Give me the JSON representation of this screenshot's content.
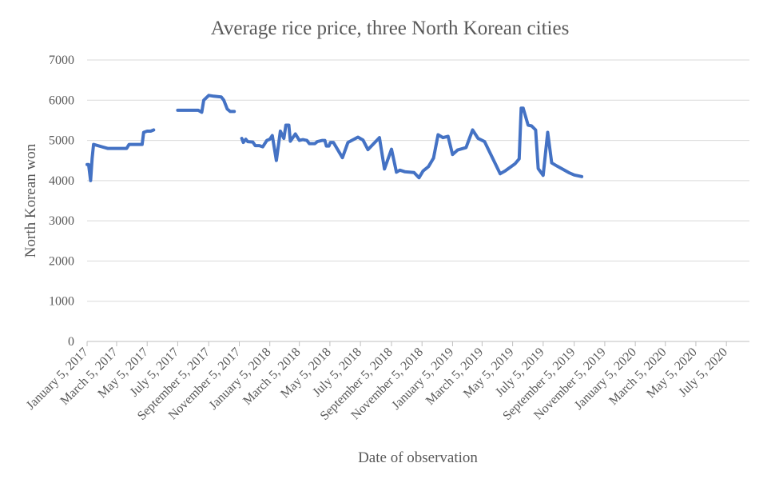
{
  "chart_data": {
    "type": "line",
    "title": "Average rice price, three North Korean cities",
    "xlabel": "Date of observation",
    "ylabel": "North Korean won",
    "ylim": [
      0,
      7000
    ],
    "yticks": [
      0,
      1000,
      2000,
      3000,
      4000,
      5000,
      6000,
      7000
    ],
    "xlim": [
      "2017-01-05",
      "2020-08-20"
    ],
    "xticks": [
      {
        "date": "2017-01-05",
        "label": "January 5, 2017"
      },
      {
        "date": "2017-03-05",
        "label": "March 5, 2017"
      },
      {
        "date": "2017-05-05",
        "label": "May 5, 2017"
      },
      {
        "date": "2017-07-05",
        "label": "July 5, 2017"
      },
      {
        "date": "2017-09-05",
        "label": "September 5, 2017"
      },
      {
        "date": "2017-11-05",
        "label": "November 5, 2017"
      },
      {
        "date": "2018-01-05",
        "label": "January 5, 2018"
      },
      {
        "date": "2018-03-05",
        "label": "March 5, 2018"
      },
      {
        "date": "2018-05-05",
        "label": "May 5, 2018"
      },
      {
        "date": "2018-07-05",
        "label": "July 5, 2018"
      },
      {
        "date": "2018-09-05",
        "label": "September 5, 2018"
      },
      {
        "date": "2018-11-05",
        "label": "November 5, 2018"
      },
      {
        "date": "2019-01-05",
        "label": "January 5, 2019"
      },
      {
        "date": "2019-03-05",
        "label": "March 5, 2019"
      },
      {
        "date": "2019-05-05",
        "label": "May 5, 2019"
      },
      {
        "date": "2019-07-05",
        "label": "July 5, 2019"
      },
      {
        "date": "2019-09-05",
        "label": "September 5, 2019"
      },
      {
        "date": "2019-11-05",
        "label": "November 5, 2019"
      },
      {
        "date": "2020-01-05",
        "label": "January 5, 2020"
      },
      {
        "date": "2020-03-05",
        "label": "March 5, 2020"
      },
      {
        "date": "2020-05-05",
        "label": "May 5, 2020"
      },
      {
        "date": "2020-07-05",
        "label": "July 5, 2020"
      }
    ],
    "grid": true,
    "series_color": "#4472c4",
    "series": [
      {
        "segments": [
          [
            {
              "x": "2017-01-05",
              "y": 4400
            },
            {
              "x": "2017-01-08",
              "y": 4400
            },
            {
              "x": "2017-01-12",
              "y": 4000
            },
            {
              "x": "2017-01-15",
              "y": 4550
            },
            {
              "x": "2017-01-18",
              "y": 4900
            },
            {
              "x": "2017-02-15",
              "y": 4800
            },
            {
              "x": "2017-03-25",
              "y": 4800
            },
            {
              "x": "2017-03-30",
              "y": 4900
            },
            {
              "x": "2017-04-25",
              "y": 4900
            },
            {
              "x": "2017-04-28",
              "y": 5200
            },
            {
              "x": "2017-05-05",
              "y": 5230
            },
            {
              "x": "2017-05-12",
              "y": 5230
            },
            {
              "x": "2017-05-18",
              "y": 5260
            }
          ],
          [
            {
              "x": "2017-07-05",
              "y": 5750
            },
            {
              "x": "2017-08-01",
              "y": 5750
            },
            {
              "x": "2017-08-15",
              "y": 5750
            },
            {
              "x": "2017-08-22",
              "y": 5700
            },
            {
              "x": "2017-08-26",
              "y": 6000
            },
            {
              "x": "2017-09-05",
              "y": 6120
            },
            {
              "x": "2017-09-15",
              "y": 6100
            },
            {
              "x": "2017-09-30",
              "y": 6080
            },
            {
              "x": "2017-10-05",
              "y": 6000
            },
            {
              "x": "2017-10-12",
              "y": 5780
            },
            {
              "x": "2017-10-18",
              "y": 5720
            },
            {
              "x": "2017-10-26",
              "y": 5720
            }
          ],
          [
            {
              "x": "2017-11-10",
              "y": 5050
            },
            {
              "x": "2017-11-13",
              "y": 4950
            },
            {
              "x": "2017-11-18",
              "y": 5030
            },
            {
              "x": "2017-11-22",
              "y": 4970
            },
            {
              "x": "2017-12-02",
              "y": 4960
            },
            {
              "x": "2017-12-07",
              "y": 4870
            },
            {
              "x": "2017-12-15",
              "y": 4870
            },
            {
              "x": "2017-12-22",
              "y": 4840
            },
            {
              "x": "2017-12-30",
              "y": 5000
            },
            {
              "x": "2018-01-05",
              "y": 5030
            },
            {
              "x": "2018-01-10",
              "y": 5120
            },
            {
              "x": "2018-01-18",
              "y": 4500
            },
            {
              "x": "2018-01-26",
              "y": 5230
            },
            {
              "x": "2018-02-02",
              "y": 5050
            },
            {
              "x": "2018-02-06",
              "y": 5380
            },
            {
              "x": "2018-02-12",
              "y": 5380
            },
            {
              "x": "2018-02-15",
              "y": 4980
            },
            {
              "x": "2018-02-25",
              "y": 5160
            },
            {
              "x": "2018-03-05",
              "y": 5000
            },
            {
              "x": "2018-03-12",
              "y": 5020
            },
            {
              "x": "2018-03-20",
              "y": 5000
            },
            {
              "x": "2018-03-25",
              "y": 4920
            },
            {
              "x": "2018-04-05",
              "y": 4920
            },
            {
              "x": "2018-04-10",
              "y": 4970
            },
            {
              "x": "2018-04-20",
              "y": 5000
            },
            {
              "x": "2018-04-25",
              "y": 5000
            },
            {
              "x": "2018-04-28",
              "y": 4860
            },
            {
              "x": "2018-05-03",
              "y": 4860
            },
            {
              "x": "2018-05-06",
              "y": 4950
            },
            {
              "x": "2018-05-12",
              "y": 4950
            },
            {
              "x": "2018-05-30",
              "y": 4570
            },
            {
              "x": "2018-06-10",
              "y": 4950
            },
            {
              "x": "2018-06-30",
              "y": 5080
            },
            {
              "x": "2018-07-10",
              "y": 5010
            },
            {
              "x": "2018-07-20",
              "y": 4770
            },
            {
              "x": "2018-08-12",
              "y": 5070
            },
            {
              "x": "2018-08-22",
              "y": 4290
            },
            {
              "x": "2018-09-05",
              "y": 4780
            },
            {
              "x": "2018-09-15",
              "y": 4210
            },
            {
              "x": "2018-09-22",
              "y": 4260
            },
            {
              "x": "2018-10-02",
              "y": 4220
            },
            {
              "x": "2018-10-20",
              "y": 4200
            },
            {
              "x": "2018-10-30",
              "y": 4070
            },
            {
              "x": "2018-11-07",
              "y": 4240
            },
            {
              "x": "2018-11-18",
              "y": 4350
            },
            {
              "x": "2018-11-28",
              "y": 4560
            },
            {
              "x": "2018-12-07",
              "y": 5140
            },
            {
              "x": "2018-12-17",
              "y": 5070
            },
            {
              "x": "2018-12-27",
              "y": 5100
            },
            {
              "x": "2019-01-05",
              "y": 4650
            },
            {
              "x": "2019-01-15",
              "y": 4760
            },
            {
              "x": "2019-02-01",
              "y": 4820
            },
            {
              "x": "2019-02-14",
              "y": 5260
            },
            {
              "x": "2019-02-25",
              "y": 5050
            },
            {
              "x": "2019-03-10",
              "y": 4970
            },
            {
              "x": "2019-04-10",
              "y": 4170
            },
            {
              "x": "2019-04-20",
              "y": 4240
            },
            {
              "x": "2019-05-10",
              "y": 4420
            },
            {
              "x": "2019-05-18",
              "y": 4540
            },
            {
              "x": "2019-05-22",
              "y": 5800
            },
            {
              "x": "2019-05-26",
              "y": 5800
            },
            {
              "x": "2019-06-05",
              "y": 5380
            },
            {
              "x": "2019-06-12",
              "y": 5360
            },
            {
              "x": "2019-06-20",
              "y": 5260
            },
            {
              "x": "2019-06-25",
              "y": 4300
            },
            {
              "x": "2019-07-05",
              "y": 4130
            },
            {
              "x": "2019-07-14",
              "y": 5200
            },
            {
              "x": "2019-07-22",
              "y": 4440
            },
            {
              "x": "2019-08-02",
              "y": 4360
            },
            {
              "x": "2019-08-25",
              "y": 4200
            },
            {
              "x": "2019-09-05",
              "y": 4140
            },
            {
              "x": "2019-09-20",
              "y": 4100
            }
          ]
        ]
      }
    ]
  }
}
